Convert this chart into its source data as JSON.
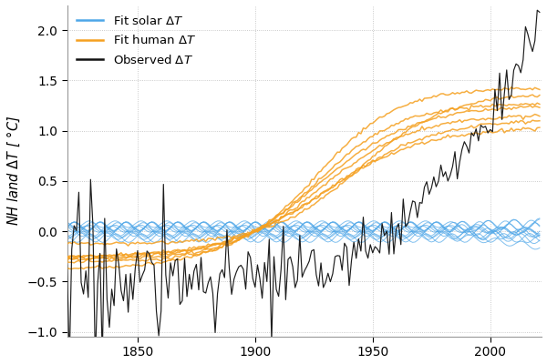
{
  "ylabel": "NH land $\\Delta T$ [ $^\\circ$C]",
  "xlim": [
    1820,
    2022
  ],
  "ylim": [
    -1.05,
    2.25
  ],
  "yticks": [
    -1.0,
    -0.5,
    0.0,
    0.5,
    1.0,
    1.5,
    2.0
  ],
  "xticks": [
    1850,
    1900,
    1950,
    2000
  ],
  "solar_color": "#4da6e8",
  "human_color": "#f5a020",
  "obs_color": "#111111",
  "legend_labels": [
    "Fit solar $\\Delta T$",
    "Fit human $\\Delta T$",
    "Observed $\\Delta T$"
  ],
  "n_solar_lines": 13,
  "n_human_lines": 7,
  "seed": 17
}
